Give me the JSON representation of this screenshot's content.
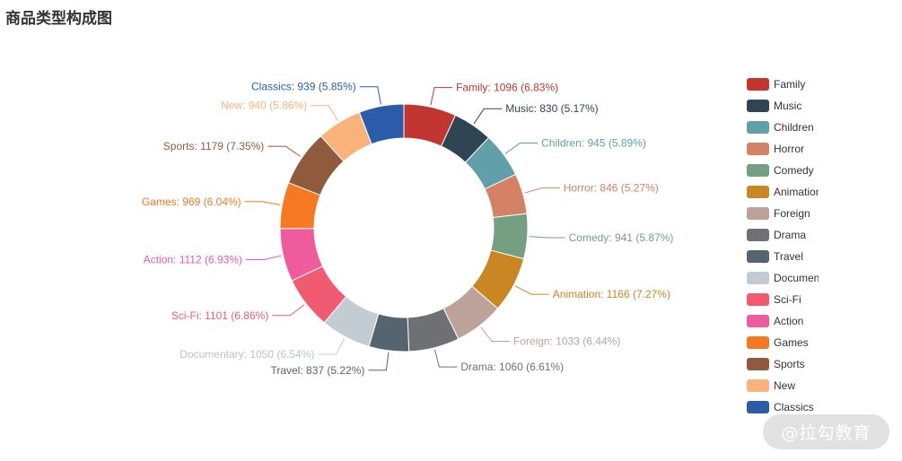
{
  "chart_data": {
    "type": "pie",
    "title": "商品类型构成图",
    "donut": true,
    "legend_position": "right",
    "slices": [
      {
        "name": "Family",
        "value": 1096,
        "percent": "6.83%",
        "color": "#c23531"
      },
      {
        "name": "Music",
        "value": 830,
        "percent": "5.17%",
        "color": "#2f4554"
      },
      {
        "name": "Children",
        "value": 945,
        "percent": "5.89%",
        "color": "#61a0a8"
      },
      {
        "name": "Horror",
        "value": 846,
        "percent": "5.27%",
        "color": "#d48265"
      },
      {
        "name": "Comedy",
        "value": 941,
        "percent": "5.87%",
        "color": "#749f83"
      },
      {
        "name": "Animation",
        "value": 1166,
        "percent": "7.27%",
        "color": "#ca8622"
      },
      {
        "name": "Foreign",
        "value": 1033,
        "percent": "6.44%",
        "color": "#bda29a"
      },
      {
        "name": "Drama",
        "value": 1060,
        "percent": "6.61%",
        "color": "#6e7074"
      },
      {
        "name": "Travel",
        "value": 837,
        "percent": "5.22%",
        "color": "#546570"
      },
      {
        "name": "Documentary",
        "value": 1050,
        "percent": "6.54%",
        "color": "#c4ccd3"
      },
      {
        "name": "Sci-Fi",
        "value": 1101,
        "percent": "6.86%",
        "color": "#f05b72"
      },
      {
        "name": "Action",
        "value": 1112,
        "percent": "6.93%",
        "color": "#ef5b9c"
      },
      {
        "name": "Games",
        "value": 969,
        "percent": "6.04%",
        "color": "#f47920"
      },
      {
        "name": "Sports",
        "value": 1179,
        "percent": "7.35%",
        "color": "#905a3d"
      },
      {
        "name": "New",
        "value": 940,
        "percent": "5.86%",
        "color": "#fab27b"
      },
      {
        "name": "Classics",
        "value": 939,
        "percent": "5.85%",
        "color": "#2a5caa"
      }
    ]
  },
  "watermark": "@拉勾教育"
}
